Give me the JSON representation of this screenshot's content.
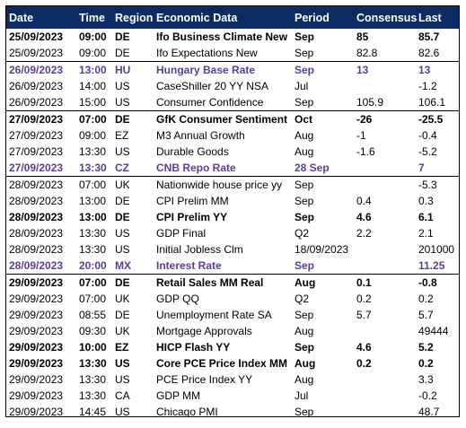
{
  "headers": {
    "date": "Date",
    "time": "Time",
    "region": "Region",
    "data": "Economic Data",
    "period": "Period",
    "consensus": "Consensus",
    "last": "Last"
  },
  "colors": {
    "header_bg": "#0d2b63",
    "highlight_text": "#5b3e9a"
  },
  "rows": [
    {
      "date": "25/09/2023",
      "time": "09:00",
      "region": "DE",
      "data": "Ifo Business Climate New",
      "period": "Sep",
      "consensus": "85",
      "last": "85.7",
      "style": "bold"
    },
    {
      "date": "25/09/2023",
      "time": "09:00",
      "region": "DE",
      "data": "Ifo Expectations New",
      "period": "Sep",
      "consensus": "82.8",
      "last": "82.6",
      "style": "normal"
    },
    {
      "date": "26/09/2023",
      "time": "13:00",
      "region": "HU",
      "data": "Hungary Base Rate",
      "period": "Sep",
      "consensus": "13",
      "last": "13",
      "style": "purple"
    },
    {
      "date": "26/09/2023",
      "time": "14:00",
      "region": "US",
      "data": "CaseShiller 20 YY NSA",
      "period": "Jul",
      "consensus": "",
      "last": "-1.2",
      "style": "normal"
    },
    {
      "date": "26/09/2023",
      "time": "15:00",
      "region": "US",
      "data": "Consumer Confidence",
      "period": "Sep",
      "consensus": "105.9",
      "last": "106.1",
      "style": "normal"
    },
    {
      "date": "27/09/2023",
      "time": "07:00",
      "region": "DE",
      "data": "GfK Consumer Sentiment",
      "period": "Oct",
      "consensus": "-26",
      "last": "-25.5",
      "style": "bold"
    },
    {
      "date": "27/09/2023",
      "time": "09:00",
      "region": "EZ",
      "data": "M3 Annual Growth",
      "period": "Aug",
      "consensus": "-1",
      "last": "-0.4",
      "style": "normal"
    },
    {
      "date": "27/09/2023",
      "time": "13:30",
      "region": "US",
      "data": "Durable Goods",
      "period": "Aug",
      "consensus": "-1.6",
      "last": "-5.2",
      "style": "normal"
    },
    {
      "date": "27/09/2023",
      "time": "13:30",
      "region": "CZ",
      "data": "CNB Repo Rate",
      "period": "28 Sep",
      "consensus": "",
      "last": "7",
      "style": "purple"
    },
    {
      "date": "28/09/2023",
      "time": "07:00",
      "region": "UK",
      "data": "Nationwide house price yy",
      "period": "Sep",
      "consensus": "",
      "last": "-5.3",
      "style": "normal"
    },
    {
      "date": "28/09/2023",
      "time": "13:00",
      "region": "DE",
      "data": "CPI Prelim MM",
      "period": "Sep",
      "consensus": "0.4",
      "last": "0.3",
      "style": "normal"
    },
    {
      "date": "28/09/2023",
      "time": "13:00",
      "region": "DE",
      "data": "CPI Prelim YY",
      "period": "Sep",
      "consensus": "4.6",
      "last": "6.1",
      "style": "bold"
    },
    {
      "date": "28/09/2023",
      "time": "13:30",
      "region": "US",
      "data": "GDP Final",
      "period": "Q2",
      "consensus": "2.2",
      "last": "2.1",
      "style": "normal"
    },
    {
      "date": "28/09/2023",
      "time": "13:30",
      "region": "US",
      "data": "Initial Jobless Clm",
      "period": "18/09/2023",
      "consensus": "",
      "last": "201000",
      "style": "normal"
    },
    {
      "date": "28/09/2023",
      "time": "20:00",
      "region": "MX",
      "data": "Interest Rate",
      "period": "Sep",
      "consensus": "",
      "last": "11.25",
      "style": "purple"
    },
    {
      "date": "29/09/2023",
      "time": "07:00",
      "region": "DE",
      "data": "Retail Sales MM Real",
      "period": "Aug",
      "consensus": "0.1",
      "last": "-0.8",
      "style": "bold"
    },
    {
      "date": "29/09/2023",
      "time": "07:00",
      "region": "UK",
      "data": "GDP QQ",
      "period": "Q2",
      "consensus": "0.2",
      "last": "0.2",
      "style": "normal"
    },
    {
      "date": "29/09/2023",
      "time": "08:55",
      "region": "DE",
      "data": "Unemployment Rate SA",
      "period": "Sep",
      "consensus": "5.7",
      "last": "5.7",
      "style": "normal"
    },
    {
      "date": "29/09/2023",
      "time": "09:30",
      "region": "UK",
      "data": "Mortgage Approvals",
      "period": "Aug",
      "consensus": "",
      "last": "49444",
      "style": "normal"
    },
    {
      "date": "29/09/2023",
      "time": "10:00",
      "region": "EZ",
      "data": "HICP Flash YY",
      "period": "Sep",
      "consensus": "4.6",
      "last": "5.2",
      "style": "bold"
    },
    {
      "date": "29/09/2023",
      "time": "13:30",
      "region": "US",
      "data": "Core PCE Price Index MM",
      "period": "Aug",
      "consensus": "0.2",
      "last": "0.2",
      "style": "bold"
    },
    {
      "date": "29/09/2023",
      "time": "13:30",
      "region": "US",
      "data": "PCE Price Index YY",
      "period": "Aug",
      "consensus": "",
      "last": "3.3",
      "style": "normal"
    },
    {
      "date": "29/09/2023",
      "time": "13:30",
      "region": "CA",
      "data": "GDP MM",
      "period": "Jul",
      "consensus": "",
      "last": "-0.2",
      "style": "normal"
    },
    {
      "date": "29/09/2023",
      "time": "14:45",
      "region": "US",
      "data": "Chicago PMI",
      "period": "Sep",
      "consensus": "",
      "last": "48.7",
      "style": "normal"
    }
  ]
}
